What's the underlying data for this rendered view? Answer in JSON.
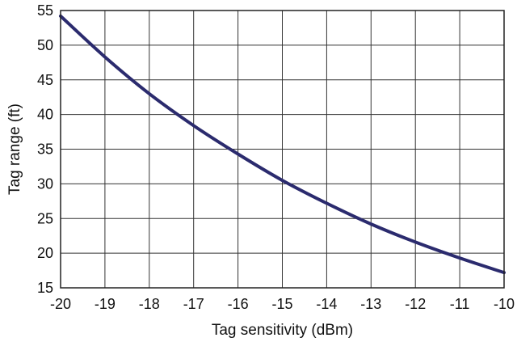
{
  "chart_data": {
    "type": "line",
    "title": "",
    "xlabel": "Tag sensitivity (dBm)",
    "ylabel": "Tag range (ft)",
    "xlim": [
      -20,
      -10
    ],
    "ylim": [
      15,
      55
    ],
    "x_ticks": [
      -20,
      -19,
      -18,
      -17,
      -16,
      -15,
      -14,
      -13,
      -12,
      -11,
      -10
    ],
    "y_ticks": [
      15,
      20,
      25,
      30,
      35,
      40,
      45,
      50,
      55
    ],
    "x_tick_labels": [
      "-20",
      "-19",
      "-18",
      "-17",
      "-16",
      "-15",
      "-14",
      "-13",
      "-12",
      "-11",
      "-10"
    ],
    "y_tick_labels": [
      "15",
      "20",
      "25",
      "30",
      "35",
      "40",
      "45",
      "50",
      "55"
    ],
    "grid": true,
    "legend": "none",
    "series": [
      {
        "color": "#2b2b6e",
        "x": [
          -20,
          -19,
          -18,
          -17,
          -16,
          -15,
          -14,
          -13,
          -12,
          -11,
          -10
        ],
        "y": [
          54.2,
          48.3,
          43.0,
          38.4,
          34.3,
          30.5,
          27.2,
          24.2,
          21.6,
          19.3,
          17.2
        ]
      }
    ]
  }
}
